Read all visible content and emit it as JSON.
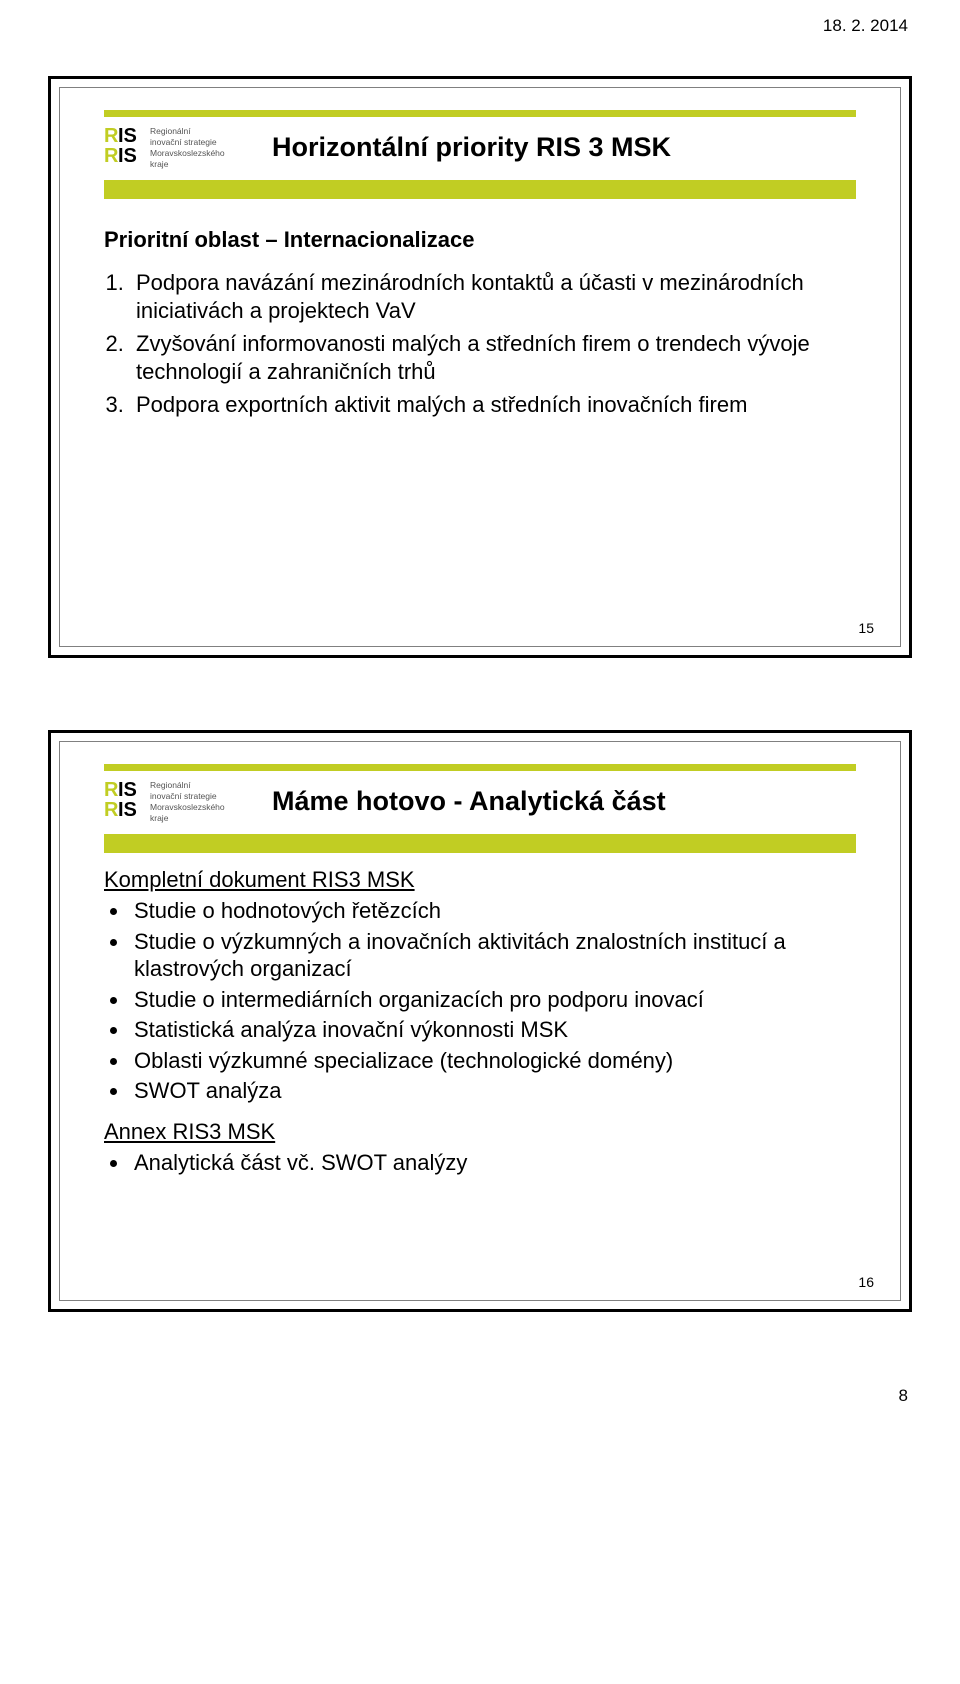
{
  "document": {
    "date": "18. 2. 2014",
    "page_number": "8"
  },
  "logo": {
    "line1": "RIS",
    "line2": "RIS",
    "text_small": "Regionální\ninovační strategie\nMoravskoslezského\nkraje",
    "accent_color": "#c1cd23",
    "bar_top_height": 7,
    "bar_bottom_height": 19
  },
  "slide1": {
    "slide_number": "15",
    "title": "Horizontální priority RIS 3 MSK",
    "subtitle": "Prioritní oblast – Internacionalizace",
    "items": [
      "Podpora navázání mezinárodních kontaktů a účasti v mezinárodních iniciativách a projektech VaV",
      "Zvyšování informovanosti malých a středních firem o trendech vývoje technologií a zahraničních trhů",
      "Podpora exportních aktivit malých a středních inovačních firem"
    ]
  },
  "slide2": {
    "slide_number": "16",
    "title": "Máme hotovo - Analytická část",
    "section1_label": "Kompletní dokument RIS3 MSK",
    "section1_bullets": [
      "Studie o hodnotových řetězcích",
      "Studie o výzkumných a inovačních aktivitách znalostních institucí a klastrových organizací",
      "Studie o intermediárních organizacích pro podporu inovací",
      "Statistická analýza inovační výkonnosti MSK",
      "Oblasti výzkumné specializace (technologické domény)",
      "SWOT analýza"
    ],
    "section2_label": "Annex RIS3 MSK",
    "section2_bullets": [
      "Analytická část vč. SWOT analýzy"
    ]
  }
}
